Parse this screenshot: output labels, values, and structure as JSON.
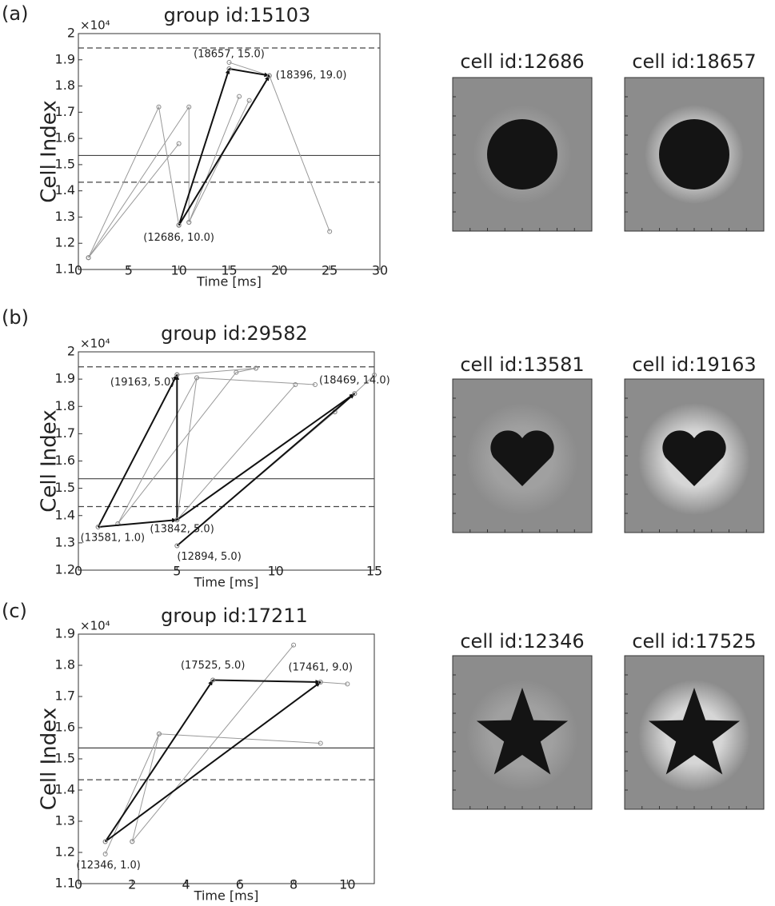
{
  "chart_data": [
    {
      "type": "line",
      "title": "group id:15103",
      "xlabel": "Time [ms]",
      "ylabel": "Cell Index",
      "y_multiplier": "×10⁴",
      "xlim": [
        0,
        30
      ],
      "xticks": [
        0,
        5,
        10,
        15,
        20,
        25,
        30
      ],
      "ylim": [
        11000,
        20000
      ],
      "yticks": [
        {
          "value": 11000,
          "label": "1.1"
        },
        {
          "value": 12000,
          "label": "1.2"
        },
        {
          "value": 13000,
          "label": "1.3"
        },
        {
          "value": 14000,
          "label": "1.4"
        },
        {
          "value": 15000,
          "label": "1.5"
        },
        {
          "value": 16000,
          "label": "1.6"
        },
        {
          "value": 17000,
          "label": "1.7"
        },
        {
          "value": 18000,
          "label": "1.8"
        },
        {
          "value": 19000,
          "label": "1.9"
        },
        {
          "value": 20000,
          "label": "2"
        }
      ],
      "hlines": [
        {
          "value": 19450,
          "style": "dashed"
        },
        {
          "value": 15350,
          "style": "solid"
        },
        {
          "value": 14330,
          "style": "dashed"
        }
      ],
      "series": [
        {
          "color": "#999999",
          "style": "thin",
          "x": [
            1,
            8,
            10
          ],
          "values": [
            11450,
            17200,
            12700
          ]
        },
        {
          "color": "#999999",
          "style": "thin",
          "x": [
            1,
            10
          ],
          "values": [
            11450,
            15800
          ]
        },
        {
          "color": "#999999",
          "style": "thin",
          "x": [
            1,
            11,
            11
          ],
          "values": [
            11450,
            17200,
            12800
          ]
        },
        {
          "color": "#999999",
          "style": "thin",
          "x": [
            11,
            16
          ],
          "values": [
            12800,
            17600
          ]
        },
        {
          "color": "#999999",
          "style": "thin",
          "x": [
            11,
            17
          ],
          "values": [
            12800,
            17450
          ]
        },
        {
          "color": "#999999",
          "style": "thin",
          "x": [
            15,
            19,
            25
          ],
          "values": [
            18900,
            18396,
            12450
          ]
        },
        {
          "color": "#111111",
          "style": "arrow",
          "x": [
            10,
            15
          ],
          "values": [
            12686,
            18657
          ]
        },
        {
          "color": "#111111",
          "style": "arrow",
          "x": [
            10,
            19
          ],
          "values": [
            12686,
            18396
          ]
        },
        {
          "color": "#111111",
          "style": "arrow",
          "x": [
            15,
            19
          ],
          "values": [
            18657,
            18396
          ]
        }
      ],
      "annotations": [
        {
          "text": "(18657, 15.0)",
          "x": 15,
          "y": 18657
        },
        {
          "text": "(18396, 19.0)",
          "x": 19,
          "y": 18396
        },
        {
          "text": "(12686, 10.0)",
          "x": 10,
          "y": 12686
        }
      ]
    },
    {
      "type": "line",
      "title": "group id:29582",
      "xlabel": "Time [ms]",
      "ylabel": "Cell Index",
      "y_multiplier": "×10⁴",
      "xlim": [
        0,
        15
      ],
      "xticks": [
        0,
        5,
        10,
        15
      ],
      "ylim": [
        12000,
        20000
      ],
      "yticks": [
        {
          "value": 12000,
          "label": "1.2"
        },
        {
          "value": 13000,
          "label": "1.3"
        },
        {
          "value": 14000,
          "label": "1.4"
        },
        {
          "value": 15000,
          "label": "1.5"
        },
        {
          "value": 16000,
          "label": "1.6"
        },
        {
          "value": 17000,
          "label": "1.7"
        },
        {
          "value": 18000,
          "label": "1.8"
        },
        {
          "value": 19000,
          "label": "1.9"
        },
        {
          "value": 20000,
          "label": "2"
        }
      ],
      "hlines": [
        {
          "value": 19450,
          "style": "dashed"
        },
        {
          "value": 15350,
          "style": "solid"
        },
        {
          "value": 14330,
          "style": "dashed"
        }
      ],
      "series": [
        {
          "color": "#999999",
          "style": "thin",
          "x": [
            2,
            6,
            12
          ],
          "values": [
            13700,
            19050,
            18800
          ]
        },
        {
          "color": "#999999",
          "style": "thin",
          "x": [
            2,
            8,
            9
          ],
          "values": [
            13700,
            19250,
            19400
          ]
        },
        {
          "color": "#999999",
          "style": "thin",
          "x": [
            5,
            11
          ],
          "values": [
            13842,
            18800
          ]
        },
        {
          "color": "#999999",
          "style": "thin",
          "x": [
            13,
            15
          ],
          "values": [
            17800,
            19150
          ]
        },
        {
          "color": "#999999",
          "style": "thin",
          "x": [
            5,
            9
          ],
          "values": [
            19163,
            19400
          ]
        },
        {
          "color": "#999999",
          "style": "thin",
          "x": [
            5,
            13
          ],
          "values": [
            12894,
            17800
          ]
        },
        {
          "color": "#999999",
          "style": "thin",
          "x": [
            6,
            5
          ],
          "values": [
            19050,
            13842
          ]
        },
        {
          "color": "#111111",
          "style": "arrow",
          "x": [
            1,
            5
          ],
          "values": [
            13581,
            19163
          ]
        },
        {
          "color": "#111111",
          "style": "arrow",
          "x": [
            1,
            5
          ],
          "values": [
            13581,
            13842
          ]
        },
        {
          "color": "#111111",
          "style": "arrow",
          "x": [
            5,
            5
          ],
          "values": [
            13842,
            19163
          ]
        },
        {
          "color": "#111111",
          "style": "arrow",
          "x": [
            5,
            14
          ],
          "values": [
            13842,
            18469
          ]
        },
        {
          "color": "#111111",
          "style": "arrow",
          "x": [
            5,
            14
          ],
          "values": [
            12894,
            18469
          ]
        }
      ],
      "annotations": [
        {
          "text": "(19163, 5.0)",
          "x": 5,
          "y": 19163
        },
        {
          "text": "(18469, 14.0)",
          "x": 14,
          "y": 18469
        },
        {
          "text": "(13581, 1.0)",
          "x": 1,
          "y": 13581
        },
        {
          "text": "(13842, 5.0)",
          "x": 5,
          "y": 13842
        },
        {
          "text": "(12894, 5.0)",
          "x": 5,
          "y": 12894
        }
      ]
    },
    {
      "type": "line",
      "title": "group id:17211",
      "xlabel": "Time [ms]",
      "ylabel": "Cell Index",
      "y_multiplier": "×10⁴",
      "xlim": [
        0,
        11
      ],
      "xticks": [
        0,
        2,
        4,
        6,
        8,
        10
      ],
      "ylim": [
        11000,
        19000
      ],
      "yticks": [
        {
          "value": 11000,
          "label": "1.1"
        },
        {
          "value": 12000,
          "label": "1.2"
        },
        {
          "value": 13000,
          "label": "1.3"
        },
        {
          "value": 14000,
          "label": "1.4"
        },
        {
          "value": 15000,
          "label": "1.5"
        },
        {
          "value": 16000,
          "label": "1.6"
        },
        {
          "value": 17000,
          "label": "1.7"
        },
        {
          "value": 18000,
          "label": "1.8"
        },
        {
          "value": 19000,
          "label": "1.9"
        }
      ],
      "hlines": [
        {
          "value": 15350,
          "style": "solid"
        },
        {
          "value": 14330,
          "style": "dashed"
        }
      ],
      "series": [
        {
          "color": "#999999",
          "style": "thin",
          "x": [
            1,
            3,
            9
          ],
          "values": [
            11950,
            15800,
            15500
          ]
        },
        {
          "color": "#999999",
          "style": "thin",
          "x": [
            2,
            8
          ],
          "values": [
            12350,
            18650
          ]
        },
        {
          "color": "#999999",
          "style": "thin",
          "x": [
            2,
            3
          ],
          "values": [
            12350,
            15800
          ]
        },
        {
          "color": "#999999",
          "style": "thin",
          "x": [
            9,
            10
          ],
          "values": [
            17461,
            17400
          ]
        },
        {
          "color": "#111111",
          "style": "arrow",
          "x": [
            1,
            5
          ],
          "values": [
            12346,
            17525
          ]
        },
        {
          "color": "#111111",
          "style": "arrow",
          "x": [
            1,
            9
          ],
          "values": [
            12346,
            17461
          ]
        },
        {
          "color": "#111111",
          "style": "arrow",
          "x": [
            5,
            9
          ],
          "values": [
            17525,
            17461
          ]
        }
      ],
      "annotations": [
        {
          "text": "(17525, 5.0)",
          "x": 5,
          "y": 17525
        },
        {
          "text": "(17461, 9.0)",
          "x": 9,
          "y": 17461
        },
        {
          "text": "(12346, 1.0)",
          "x": 1,
          "y": 12346
        }
      ]
    }
  ],
  "panels": [
    {
      "label": "(a)",
      "cells": [
        "cell id:12686",
        "cell id:18657"
      ]
    },
    {
      "label": "(b)",
      "cells": [
        "cell id:13581",
        "cell id:19163"
      ]
    },
    {
      "label": "(c)",
      "cells": [
        "cell id:12346",
        "cell id:17525"
      ]
    }
  ]
}
